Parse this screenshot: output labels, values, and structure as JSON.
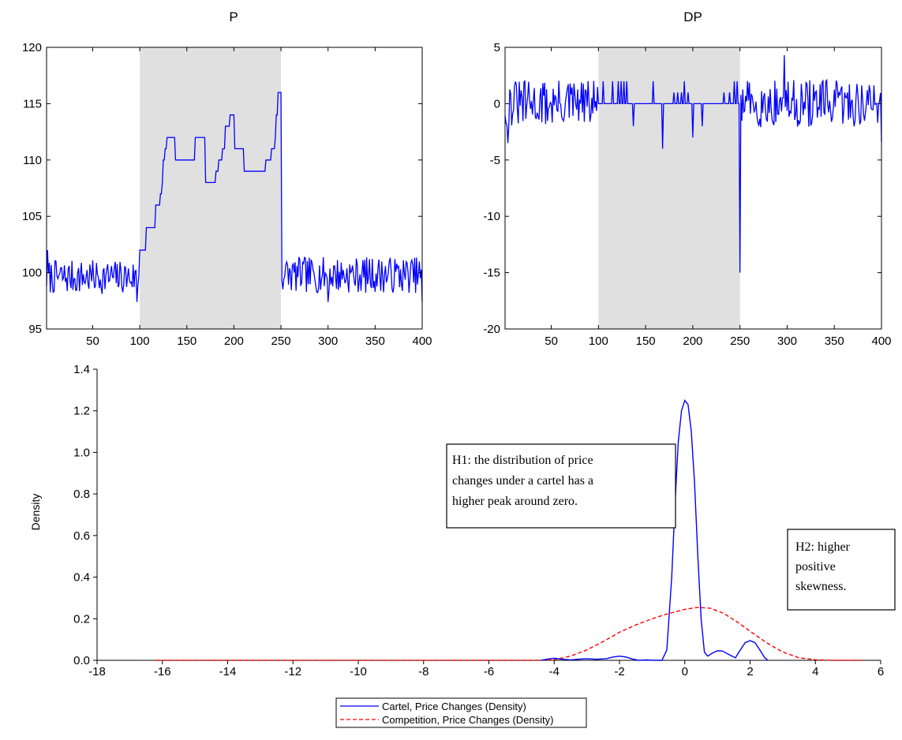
{
  "chart_data": [
    {
      "id": "p",
      "type": "line",
      "title": "P",
      "xlim": [
        1,
        400
      ],
      "ylim": [
        95,
        120
      ],
      "xticks": [
        50,
        100,
        150,
        200,
        250,
        300,
        350,
        400
      ],
      "yticks": [
        95,
        100,
        105,
        110,
        115,
        120
      ],
      "shaded_region": [
        100,
        250
      ],
      "line_color": "#0000ff",
      "shade_color": "#e0e0e0",
      "series": [
        {
          "steps": [
            [
              100,
              102
            ],
            [
              105,
              102
            ],
            [
              107,
              104
            ],
            [
              115,
              104
            ],
            [
              117,
              106
            ],
            [
              121,
              106
            ],
            [
              122,
              107
            ],
            [
              124,
              108
            ],
            [
              125,
              110
            ],
            [
              127,
              111
            ],
            [
              129,
              112
            ],
            [
              137,
              112
            ],
            [
              138,
              110
            ],
            [
              158,
              110
            ],
            [
              159,
              112
            ],
            [
              169,
              112
            ],
            [
              170,
              108
            ],
            [
              180,
              108
            ],
            [
              181,
              109
            ],
            [
              184,
              110
            ],
            [
              188,
              111
            ],
            [
              191,
              113
            ],
            [
              195,
              113
            ],
            [
              196,
              114
            ],
            [
              200,
              114
            ],
            [
              201,
              111
            ],
            [
              210,
              111
            ],
            [
              211,
              109
            ],
            [
              233,
              109
            ],
            [
              234,
              110
            ],
            [
              239,
              110
            ],
            [
              240,
              111
            ],
            [
              244,
              112
            ],
            [
              245,
              114
            ],
            [
              247,
              116
            ],
            [
              250,
              116
            ]
          ]
        }
      ]
    },
    {
      "id": "dp",
      "type": "line",
      "title": "DP",
      "xlim": [
        1,
        400
      ],
      "ylim": [
        -20,
        5
      ],
      "xticks": [
        50,
        100,
        150,
        200,
        250,
        300,
        350,
        400
      ],
      "yticks": [
        -20,
        -15,
        -10,
        -5,
        0,
        5
      ],
      "shaded_region": [
        100,
        250
      ],
      "line_color": "#0000ff",
      "shade_color": "#e0e0e0",
      "series": [
        {
          "spikes": [
            [
              105,
              2
            ],
            [
              115,
              2
            ],
            [
              121,
              2
            ],
            [
              124,
              2
            ],
            [
              127,
              2
            ],
            [
              130,
              2
            ],
            [
              137,
              -2
            ],
            [
              158,
              2
            ],
            [
              168,
              -4
            ],
            [
              180,
              1
            ],
            [
              184,
              1
            ],
            [
              188,
              1
            ],
            [
              191,
              2
            ],
            [
              195,
              1
            ],
            [
              200,
              -3
            ],
            [
              210,
              -2
            ],
            [
              233,
              1
            ],
            [
              239,
              1
            ],
            [
              244,
              2
            ],
            [
              247,
              2
            ],
            [
              250,
              -15
            ]
          ]
        }
      ]
    },
    {
      "id": "density",
      "type": "line",
      "title": "",
      "xlabel": "",
      "ylabel": "Density",
      "xlim": [
        -18,
        6
      ],
      "ylim": [
        0,
        1.4
      ],
      "xticks": [
        -18,
        -16,
        -14,
        -12,
        -10,
        -8,
        -6,
        -4,
        -2,
        0,
        2,
        4,
        6
      ],
      "yticks": [
        "0.0",
        "0.2",
        "0.4",
        "0.6",
        "0.8",
        "1.0",
        "1.2",
        "1.4"
      ],
      "legend_position": "bottom-center",
      "series": [
        {
          "name": "Cartel, Price Changes (Density)",
          "color": "#0000ff",
          "style": "solid",
          "points": [
            [
              -4.4,
              0.0
            ],
            [
              -4.2,
              0.006
            ],
            [
              -4.0,
              0.01
            ],
            [
              -3.8,
              0.006
            ],
            [
              -3.5,
              0.002
            ],
            [
              -3.2,
              0.006
            ],
            [
              -3.0,
              0.008
            ],
            [
              -2.7,
              0.005
            ],
            [
              -2.4,
              0.008
            ],
            [
              -2.2,
              0.016
            ],
            [
              -2.0,
              0.02
            ],
            [
              -1.8,
              0.016
            ],
            [
              -1.6,
              0.006
            ],
            [
              -1.4,
              0.0
            ],
            [
              -1.2,
              0.002
            ],
            [
              -0.9,
              0.0
            ],
            [
              -0.7,
              0.0
            ],
            [
              -0.55,
              0.05
            ],
            [
              -0.4,
              0.4
            ],
            [
              -0.3,
              0.75
            ],
            [
              -0.2,
              1.05
            ],
            [
              -0.1,
              1.2
            ],
            [
              0.0,
              1.25
            ],
            [
              0.1,
              1.23
            ],
            [
              0.2,
              1.1
            ],
            [
              0.3,
              0.85
            ],
            [
              0.4,
              0.5
            ],
            [
              0.5,
              0.2
            ],
            [
              0.6,
              0.04
            ],
            [
              0.7,
              0.02
            ],
            [
              0.85,
              0.035
            ],
            [
              1.0,
              0.046
            ],
            [
              1.15,
              0.045
            ],
            [
              1.35,
              0.028
            ],
            [
              1.55,
              0.012
            ],
            [
              1.7,
              0.05
            ],
            [
              1.85,
              0.085
            ],
            [
              2.0,
              0.095
            ],
            [
              2.15,
              0.085
            ],
            [
              2.3,
              0.05
            ],
            [
              2.45,
              0.012
            ],
            [
              2.55,
              0.0
            ]
          ]
        },
        {
          "name": "Competition, Price Changes (Density)",
          "color": "#ff0000",
          "style": "dashed",
          "points": [
            [
              -16.2,
              0.0
            ],
            [
              -14.0,
              0.0
            ],
            [
              -10.0,
              0.0
            ],
            [
              -6.0,
              0.0
            ],
            [
              -4.5,
              0.0
            ],
            [
              -4.0,
              0.003
            ],
            [
              -3.5,
              0.02
            ],
            [
              -3.0,
              0.05
            ],
            [
              -2.5,
              0.09
            ],
            [
              -2.0,
              0.135
            ],
            [
              -1.5,
              0.17
            ],
            [
              -1.0,
              0.2
            ],
            [
              -0.5,
              0.225
            ],
            [
              0.0,
              0.245
            ],
            [
              0.4,
              0.255
            ],
            [
              0.8,
              0.25
            ],
            [
              1.2,
              0.225
            ],
            [
              1.6,
              0.185
            ],
            [
              2.0,
              0.14
            ],
            [
              2.5,
              0.085
            ],
            [
              3.0,
              0.04
            ],
            [
              3.5,
              0.012
            ],
            [
              4.0,
              0.003
            ],
            [
              4.5,
              0.0
            ],
            [
              5.4,
              0.0
            ]
          ]
        }
      ],
      "annotations": [
        {
          "id": "h1",
          "lines": [
            "H1: the distribution of price",
            "changes under a cartel has a",
            "higher peak around zero."
          ]
        },
        {
          "id": "h2",
          "lines": [
            "H2: higher",
            "positive",
            "skewness."
          ]
        }
      ]
    }
  ]
}
